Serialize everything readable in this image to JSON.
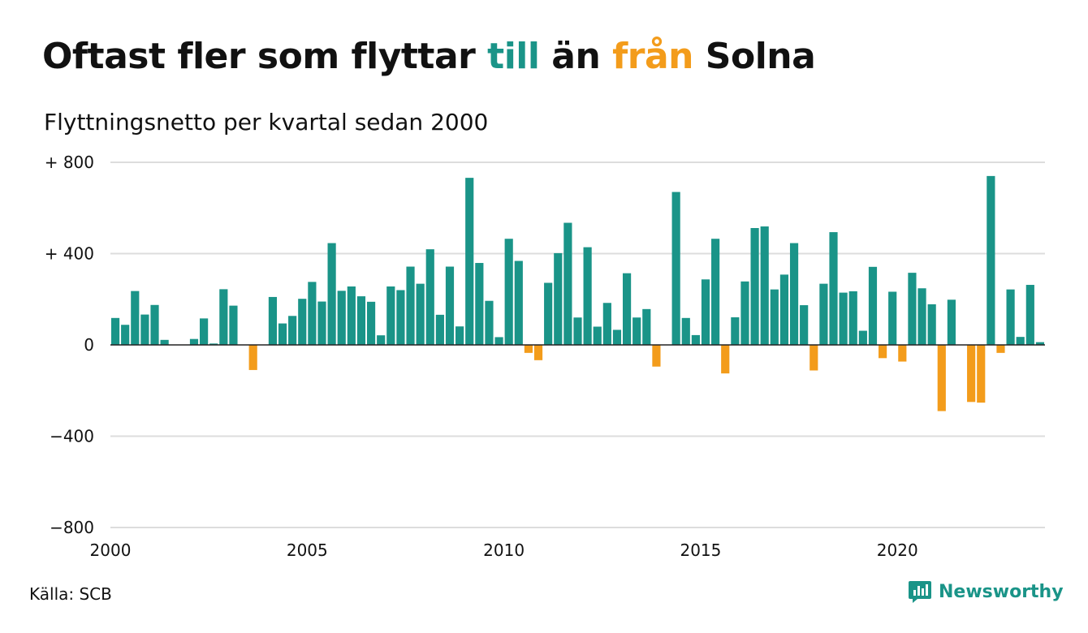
{
  "title": {
    "part1": "Oftast fler som flyttar ",
    "part2": "till",
    "part3": " än ",
    "part4": "från",
    "part5": " Solna"
  },
  "subtitle": "Flyttningsnetto per kvartal sedan 2000",
  "source": "Källa: SCB",
  "logo": {
    "name": "Newsworthy",
    "icon": "newsworthy-logo-icon"
  },
  "colors": {
    "positive": "#1a9488",
    "negative": "#f39c1b",
    "title_till": "#1a9488",
    "title_fran": "#f39c1b",
    "text": "#111111",
    "grid": "#dddddd",
    "zero_line": "#222222",
    "logo": "#1a9488"
  },
  "chart_data": {
    "type": "bar",
    "title": "Oftast fler som flyttar till än från Solna",
    "subtitle": "Flyttningsnetto per kvartal sedan 2000",
    "x_start": 2000,
    "periods_per_year": 4,
    "xticks": [
      2000,
      2005,
      2010,
      2015,
      2020
    ],
    "xtick_labels": [
      "2000",
      "2005",
      "2010",
      "2015",
      "2020"
    ],
    "ylim": [
      -800,
      800
    ],
    "yticks": [
      -800,
      -400,
      0,
      400,
      800
    ],
    "ytick_labels": [
      "−800",
      "−400",
      "0",
      "+ 400",
      "+ 800"
    ],
    "grid": true,
    "series": [
      {
        "values": [
          118,
          88,
          236,
          133,
          175,
          22,
          0,
          0,
          26,
          116,
          6,
          244,
          172,
          0,
          -110,
          0,
          210,
          94,
          127,
          202,
          276,
          190,
          446,
          237,
          256,
          213,
          189,
          42,
          256,
          240,
          343,
          268,
          419,
          132,
          343,
          81,
          732,
          359,
          193,
          34,
          465,
          368,
          -35,
          -67,
          272,
          402,
          535,
          120,
          428,
          80,
          184,
          66,
          314,
          120,
          157,
          -95,
          0,
          670,
          118,
          43,
          287,
          465,
          -125,
          121,
          278,
          512,
          519,
          243,
          308,
          446,
          174,
          -112,
          268,
          494,
          229,
          235,
          62,
          342,
          -58,
          233,
          -73,
          316,
          248,
          178,
          -290,
          198,
          0,
          -250,
          -253,
          740,
          -35,
          243,
          35,
          263,
          12
        ]
      }
    ]
  }
}
